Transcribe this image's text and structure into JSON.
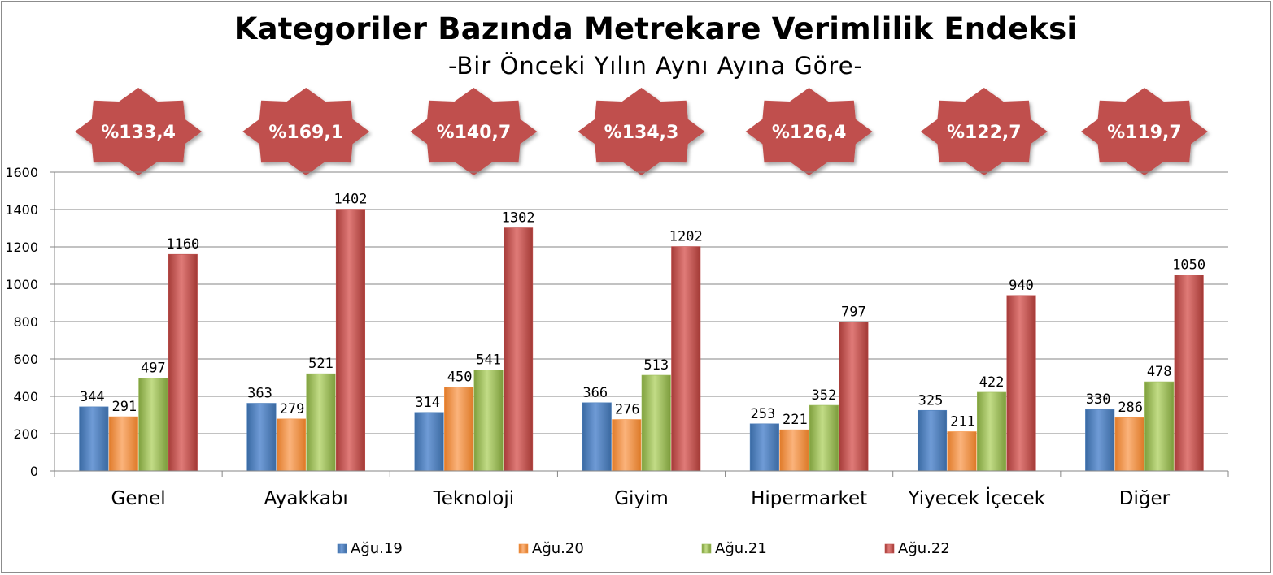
{
  "chart_data": {
    "type": "bar",
    "title": "Kategoriler Bazında Metrekare Verimlilik Endeksi",
    "subtitle": "-Bir Önceki Yılın Aynı Ayına Göre-",
    "categories": [
      "Genel",
      "Ayakkabı",
      "Teknoloji",
      "Giyim",
      "Hipermarket",
      "Yiyecek İçecek",
      "Diğer"
    ],
    "series": [
      {
        "name": "Ağu.19",
        "color": "#4f81bd",
        "values": [
          344,
          363,
          314,
          366,
          253,
          325,
          330
        ]
      },
      {
        "name": "Ağu.20",
        "color": "#f79646",
        "values": [
          291,
          279,
          450,
          276,
          221,
          211,
          286
        ]
      },
      {
        "name": "Ağu.21",
        "color": "#9bbb59",
        "values": [
          497,
          521,
          541,
          513,
          352,
          422,
          478
        ]
      },
      {
        "name": "Ağu.22",
        "color": "#c0504d",
        "values": [
          1160,
          1402,
          1302,
          1202,
          797,
          940,
          1050
        ]
      }
    ],
    "badges": [
      "%133,4",
      "%169,1",
      "%140,7",
      "%134,3",
      "%126,4",
      "%122,7",
      "%119,7"
    ],
    "badge_color": "#c0504d",
    "y_ticks": [
      0,
      200,
      400,
      600,
      800,
      1000,
      1200,
      1400,
      1600
    ],
    "ylim": [
      0,
      1600
    ],
    "grid": true,
    "legend_position": "bottom"
  }
}
